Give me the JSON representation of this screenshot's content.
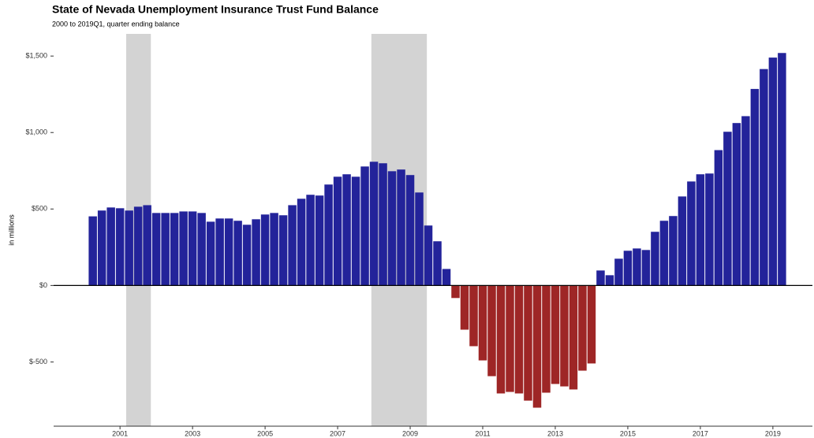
{
  "chart_data": {
    "type": "bar",
    "title": "State of Nevada Unemployment Insurance Trust Fund Balance",
    "subtitle": "2000 to 2019Q1, quarter ending balance",
    "y_label": "in millions",
    "x": [
      2000.25,
      2000.5,
      2000.75,
      2001,
      2001.25,
      2001.5,
      2001.75,
      2002,
      2002.25,
      2002.5,
      2002.75,
      2003,
      2003.25,
      2003.5,
      2003.75,
      2004,
      2004.25,
      2004.5,
      2004.75,
      2005,
      2005.25,
      2005.5,
      2005.75,
      2006,
      2006.25,
      2006.5,
      2006.75,
      2007,
      2007.25,
      2007.5,
      2007.75,
      2008,
      2008.25,
      2008.5,
      2008.75,
      2009,
      2009.25,
      2009.5,
      2009.75,
      2010,
      2010.25,
      2010.5,
      2010.75,
      2011,
      2011.25,
      2011.5,
      2011.75,
      2012,
      2012.25,
      2012.5,
      2012.75,
      2013,
      2013.25,
      2013.5,
      2013.75,
      2014,
      2014.25,
      2014.5,
      2014.75,
      2015,
      2015.25,
      2015.5,
      2015.75,
      2016,
      2016.25,
      2016.5,
      2016.75,
      2017,
      2017.25,
      2017.5,
      2017.75,
      2018,
      2018.25,
      2018.5,
      2018.75,
      2019,
      2019.25
    ],
    "values": [
      452,
      490,
      510,
      505,
      490,
      515,
      525,
      474,
      474,
      474,
      484,
      484,
      474,
      417,
      438,
      438,
      423,
      397,
      433,
      464,
      474,
      459,
      525,
      567,
      593,
      588,
      660,
      711,
      727,
      711,
      778,
      809,
      799,
      747,
      758,
      722,
      608,
      392,
      289,
      108,
      -82,
      -289,
      -397,
      -490,
      -593,
      -706,
      -696,
      -706,
      -753,
      -799,
      -701,
      -644,
      -660,
      -680,
      -557,
      -510,
      98,
      67,
      175,
      227,
      242,
      232,
      351,
      423,
      454,
      582,
      680,
      727,
      732,
      885,
      1005,
      1062,
      1107,
      1285,
      1415,
      1490,
      1520
    ],
    "positive_color": "#23239a",
    "negative_color": "#9e2626",
    "shaded_periods": [
      [
        2001.17,
        2001.85
      ],
      [
        2007.93,
        2009.46
      ]
    ],
    "shade_color": "#d3d3d3",
    "xlim": [
      1999.17,
      2020.09
    ],
    "xticks": [
      2001,
      2003,
      2005,
      2007,
      2009,
      2011,
      2013,
      2015,
      2017,
      2019
    ],
    "ylim": [
      -920,
      1645
    ],
    "yticks": [
      {
        "value": -500,
        "label": "$-500"
      },
      {
        "value": 0,
        "label": "$0"
      },
      {
        "value": 500,
        "label": "$500"
      },
      {
        "value": 1000,
        "label": "$1,000"
      },
      {
        "value": 1500,
        "label": "$1,500"
      }
    ]
  }
}
